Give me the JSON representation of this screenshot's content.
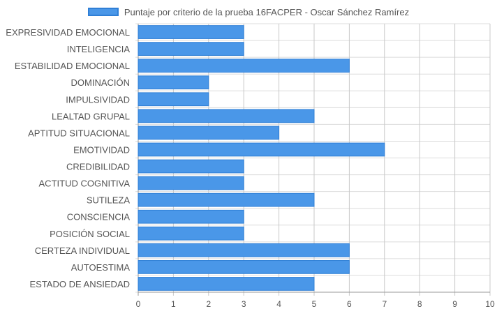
{
  "chart_data": {
    "type": "bar",
    "orientation": "horizontal",
    "legend_position": "top",
    "grid": true,
    "categories": [
      "EXPRESIVIDAD EMOCIONAL",
      "INTELIGENCIA",
      "ESTABILIDAD EMOCIONAL",
      "DOMINACIÓN",
      "IMPULSIVIDAD",
      "LEALTAD GRUPAL",
      "APTITUD SITUACIONAL",
      "EMOTIVIDAD",
      "CREDIBILIDAD",
      "ACTITUD COGNITIVA",
      "SUTILEZA",
      "CONSCIENCIA",
      "POSICIÓN SOCIAL",
      "CERTEZA INDIVIDUAL",
      "AUTOESTIMA",
      "ESTADO DE ANSIEDAD"
    ],
    "series": [
      {
        "name": "Puntaje por criterio de la prueba 16FACPER - Oscar Sánchez Ramírez",
        "values": [
          3,
          3,
          6,
          2,
          2,
          5,
          4,
          7,
          3,
          3,
          5,
          3,
          3,
          6,
          6,
          5
        ]
      }
    ],
    "xlim": [
      0,
      10
    ],
    "xticks": [
      "0",
      "1",
      "2",
      "3",
      "4",
      "5",
      "6",
      "7",
      "8",
      "9",
      "10"
    ],
    "colors": {
      "bar": "#4a97e8",
      "bar_border": "#2f7fd6",
      "grid": "#dcdcdc",
      "axis": "#999999",
      "text": "#555555"
    }
  }
}
